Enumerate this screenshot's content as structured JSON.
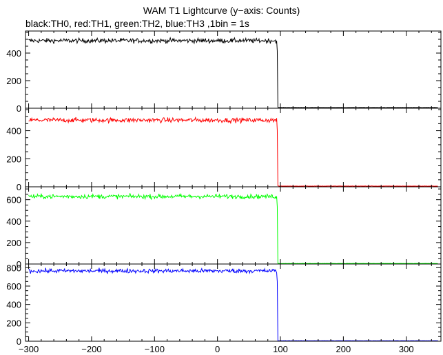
{
  "chart_data": {
    "type": "line",
    "title": "WAM T1 Lightcurve (y−axis: Counts)",
    "subtitle": "black:TH0, red:TH1, green:TH2, blue:TH3 ,1bin = 1s",
    "xlim": [
      -305,
      355
    ],
    "x_ticks": [
      -300,
      -200,
      -100,
      0,
      100,
      200,
      300
    ],
    "x_tick_labels": [
      "−300",
      "−200",
      "−100",
      "0",
      "100",
      "200",
      "300"
    ],
    "grid": false,
    "legend": "none",
    "panels": [
      {
        "name": "TH0",
        "color": "#000000",
        "ylim": [
          0,
          560
        ],
        "y_ticks": [
          0,
          200,
          400
        ],
        "level_before": 490,
        "noise_amplitude": 18,
        "step_x": 96,
        "level_after": 5
      },
      {
        "name": "TH1",
        "color": "#ff0000",
        "ylim": [
          0,
          560
        ],
        "y_ticks": [
          0,
          200,
          400
        ],
        "level_before": 475,
        "noise_amplitude": 18,
        "step_x": 96,
        "level_after": 5
      },
      {
        "name": "TH2",
        "color": "#00ff00",
        "ylim": [
          0,
          720
        ],
        "y_ticks": [
          0,
          200,
          400,
          600
        ],
        "level_before": 630,
        "noise_amplitude": 22,
        "step_x": 96,
        "level_after": 5
      },
      {
        "name": "TH3",
        "color": "#0000ff",
        "ylim": [
          0,
          840
        ],
        "y_ticks": [
          0,
          200,
          400,
          600,
          800
        ],
        "level_before": 765,
        "noise_amplitude": 25,
        "step_x": 96,
        "level_after": 5
      }
    ]
  }
}
